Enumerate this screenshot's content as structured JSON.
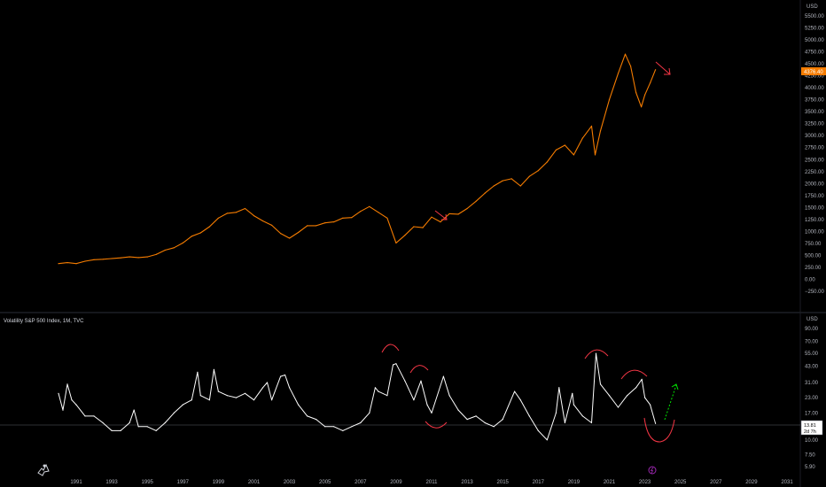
{
  "chart_data": [
    {
      "type": "line",
      "currency": "USD",
      "color": "#f57c00",
      "ylim": [
        -250,
        5500
      ],
      "yticks": [
        "5500.00",
        "5250.00",
        "5000.00",
        "4750.00",
        "4500.00",
        "4250.00",
        "4000.00",
        "3750.00",
        "3500.00",
        "3250.00",
        "3000.00",
        "2750.00",
        "2500.00",
        "2250.00",
        "2000.00",
        "1750.00",
        "1500.00",
        "1250.00",
        "1000.00",
        "750.00",
        "500.00",
        "250.00",
        "0.00",
        "−250.00"
      ],
      "last_value_label": "4376.40",
      "x": [
        1990.0,
        1990.5,
        1991.0,
        1991.5,
        1992.0,
        1992.5,
        1993.0,
        1993.5,
        1994.0,
        1994.5,
        1995.0,
        1995.5,
        1996.0,
        1996.5,
        1997.0,
        1997.5,
        1998.0,
        1998.5,
        1999.0,
        1999.5,
        2000.0,
        2000.5,
        2001.0,
        2001.5,
        2002.0,
        2002.5,
        2003.0,
        2003.5,
        2004.0,
        2004.5,
        2005.0,
        2005.5,
        2006.0,
        2006.5,
        2007.0,
        2007.5,
        2008.0,
        2008.5,
        2009.0,
        2009.5,
        2010.0,
        2010.5,
        2011.0,
        2011.5,
        2012.0,
        2012.5,
        2013.0,
        2013.5,
        2014.0,
        2014.5,
        2015.0,
        2015.5,
        2016.0,
        2016.5,
        2017.0,
        2017.5,
        2018.0,
        2018.5,
        2019.0,
        2019.5,
        2020.0,
        2020.2,
        2020.5,
        2021.0,
        2021.5,
        2021.9,
        2022.2,
        2022.5,
        2022.8,
        2023.0,
        2023.3,
        2023.6
      ],
      "values": [
        330,
        350,
        330,
        380,
        410,
        420,
        435,
        450,
        470,
        455,
        470,
        520,
        610,
        660,
        760,
        900,
        970,
        1100,
        1280,
        1380,
        1400,
        1480,
        1330,
        1220,
        1130,
        960,
        860,
        980,
        1120,
        1120,
        1180,
        1200,
        1280,
        1290,
        1420,
        1520,
        1400,
        1280,
        760,
        920,
        1100,
        1080,
        1300,
        1200,
        1370,
        1360,
        1480,
        1630,
        1800,
        1950,
        2060,
        2100,
        1950,
        2150,
        2270,
        2450,
        2700,
        2800,
        2600,
        2950,
        3200,
        2600,
        3100,
        3750,
        4300,
        4700,
        4450,
        3900,
        3600,
        3850,
        4100,
        4376.4
      ]
    },
    {
      "type": "line",
      "title": "Volatility S&P 500 Index, 1M, TVC",
      "currency": "USD",
      "color": "#ffffff",
      "scale": "log",
      "ylim": [
        5.2,
        100
      ],
      "yticks": [
        "90.00",
        "70.00",
        "55.00",
        "43.00",
        "31.00",
        "23.00",
        "17.00",
        "13.00",
        "10.00",
        "7.50",
        "5.90"
      ],
      "last_value_label": "13.81",
      "countdown_label": "2d 7h",
      "x": [
        1990.0,
        1990.25,
        1990.5,
        1990.75,
        1991.0,
        1991.5,
        1992.0,
        1992.5,
        1993.0,
        1993.5,
        1994.0,
        1994.25,
        1994.5,
        1995.0,
        1995.5,
        1996.0,
        1996.5,
        1997.0,
        1997.5,
        1997.83,
        1998.0,
        1998.5,
        1998.75,
        1999.0,
        1999.5,
        2000.0,
        2000.5,
        2001.0,
        2001.5,
        2001.75,
        2002.0,
        2002.5,
        2002.75,
        2003.0,
        2003.5,
        2004.0,
        2004.5,
        2005.0,
        2005.5,
        2006.0,
        2006.5,
        2007.0,
        2007.5,
        2007.83,
        2008.0,
        2008.5,
        2008.83,
        2009.0,
        2009.5,
        2010.0,
        2010.4,
        2010.75,
        2011.0,
        2011.67,
        2012.0,
        2012.5,
        2013.0,
        2013.5,
        2014.0,
        2014.5,
        2015.0,
        2015.67,
        2016.0,
        2016.5,
        2017.0,
        2017.5,
        2018.0,
        2018.17,
        2018.5,
        2018.92,
        2019.0,
        2019.5,
        2020.0,
        2020.25,
        2020.5,
        2021.0,
        2021.5,
        2022.0,
        2022.5,
        2022.83,
        2023.0,
        2023.3,
        2023.6
      ],
      "values": [
        25,
        18,
        30,
        22,
        20,
        16,
        16,
        14,
        12,
        12,
        14,
        18,
        13,
        13,
        12,
        14,
        17,
        20,
        22,
        38,
        24,
        22,
        40,
        26,
        24,
        23,
        25,
        22,
        28,
        31,
        22,
        35,
        36,
        28,
        20,
        16,
        15,
        13,
        13,
        12,
        13,
        14,
        17,
        28,
        26,
        24,
        44,
        45,
        32,
        22,
        32,
        20,
        17,
        35,
        24,
        18,
        15,
        16,
        14,
        13,
        15,
        26,
        22,
        16,
        12,
        10,
        17,
        28,
        14,
        25,
        20,
        16,
        14,
        55,
        30,
        24,
        19,
        24,
        28,
        33,
        23,
        20,
        13.81
      ]
    }
  ],
  "x_axis_ticks": [
    "1991",
    "1993",
    "1995",
    "1997",
    "1999",
    "2001",
    "2003",
    "2005",
    "2007",
    "2009",
    "2011",
    "2013",
    "2015",
    "2017",
    "2019",
    "2021",
    "2023",
    "2025",
    "2027",
    "2029",
    "2031"
  ],
  "x_axis_tick_years": [
    1991,
    1993,
    1995,
    1997,
    1999,
    2001,
    2003,
    2005,
    2007,
    2009,
    2011,
    2013,
    2015,
    2017,
    2019,
    2021,
    2023,
    2025,
    2027,
    2029,
    2031
  ],
  "annotation_colors": {
    "red": "#f23645",
    "green": "#00e600"
  },
  "logo_icon": "tradingview-icon",
  "event_marker_icon": "flash-icon"
}
